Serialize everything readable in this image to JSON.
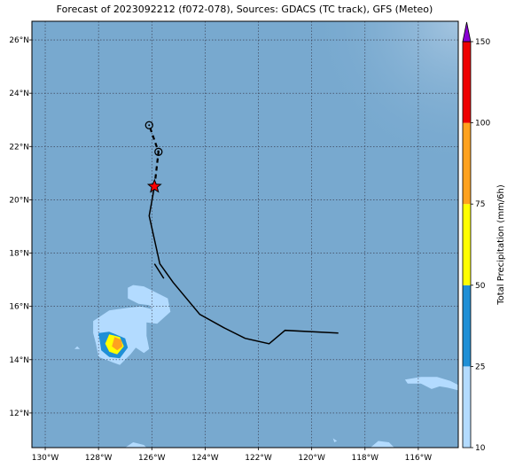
{
  "title": "Forecast of 2023092212 (f072-078), Sources: GDACS (TC track), GFS (Meteo)",
  "map": {
    "lon_range": [
      -130.5,
      -114.5
    ],
    "lat_range": [
      10.7,
      26.7
    ],
    "lon_ticks": [
      {
        "value": -130,
        "label": "130°W"
      },
      {
        "value": -128,
        "label": "128°W"
      },
      {
        "value": -126,
        "label": "126°W"
      },
      {
        "value": -124,
        "label": "124°W"
      },
      {
        "value": -122,
        "label": "122°W"
      },
      {
        "value": -120,
        "label": "120°W"
      },
      {
        "value": -118,
        "label": "118°W"
      },
      {
        "value": -116,
        "label": "116°W"
      }
    ],
    "lat_ticks": [
      {
        "value": 12,
        "label": "12°N"
      },
      {
        "value": 14,
        "label": "14°N"
      },
      {
        "value": 16,
        "label": "16°N"
      },
      {
        "value": 18,
        "label": "18°N"
      },
      {
        "value": 20,
        "label": "20°N"
      },
      {
        "value": 22,
        "label": "22°N"
      },
      {
        "value": 24,
        "label": "24°N"
      },
      {
        "value": 26,
        "label": "26°N"
      }
    ],
    "grid": true,
    "ocean_color": "#78a9cf"
  },
  "track": {
    "observed": [
      [
        -119.0,
        15.0
      ],
      [
        -121.0,
        15.1
      ],
      [
        -121.6,
        14.6
      ],
      [
        -122.5,
        14.8
      ],
      [
        -123.3,
        15.2
      ],
      [
        -124.2,
        15.7
      ],
      [
        -125.2,
        16.9
      ],
      [
        -125.7,
        17.6
      ],
      [
        -125.9,
        18.5
      ],
      [
        -126.1,
        19.4
      ],
      [
        -125.9,
        20.5
      ]
    ],
    "loop": [
      [
        -125.9,
        17.6
      ],
      [
        -125.55,
        17.05
      ]
    ],
    "forecast": [
      [
        -125.9,
        20.5
      ],
      [
        -125.75,
        21.8
      ],
      [
        -126.1,
        22.8
      ]
    ],
    "forecast_points": [
      [
        -125.75,
        21.8
      ],
      [
        -126.1,
        22.8
      ]
    ],
    "current_position": [
      -125.9,
      20.5
    ],
    "current_color": "#ff0000",
    "line_color": "#000000"
  },
  "precipitation": {
    "regions": [
      {
        "level": 10,
        "color": "#b3dbff",
        "points": [
          [
            -126.7,
            16.8
          ],
          [
            -126.3,
            16.75
          ],
          [
            -126.0,
            16.6
          ],
          [
            -125.8,
            16.5
          ],
          [
            -125.4,
            16.3
          ],
          [
            -125.3,
            15.8
          ],
          [
            -125.8,
            15.35
          ],
          [
            -126.2,
            15.4
          ],
          [
            -126.2,
            14.9
          ],
          [
            -126.1,
            14.4
          ],
          [
            -126.3,
            14.25
          ],
          [
            -126.6,
            14.45
          ],
          [
            -126.8,
            14.2
          ],
          [
            -127.2,
            13.8
          ],
          [
            -127.6,
            13.95
          ],
          [
            -128.0,
            14.1
          ],
          [
            -128.1,
            14.6
          ],
          [
            -128.2,
            15.0
          ],
          [
            -128.2,
            15.45
          ],
          [
            -127.6,
            15.85
          ],
          [
            -126.9,
            15.95
          ],
          [
            -126.4,
            16.0
          ],
          [
            -126.0,
            15.9
          ],
          [
            -126.1,
            16.05
          ],
          [
            -126.5,
            16.1
          ],
          [
            -126.9,
            16.3
          ],
          [
            -126.9,
            16.7
          ]
        ]
      },
      {
        "level": 25,
        "color": "#1f8fd6",
        "points": [
          [
            -128.0,
            15.0
          ],
          [
            -127.6,
            15.05
          ],
          [
            -127.0,
            14.8
          ],
          [
            -126.9,
            14.45
          ],
          [
            -127.2,
            14.05
          ],
          [
            -127.6,
            14.1
          ],
          [
            -127.9,
            14.35
          ]
        ]
      },
      {
        "level": 50,
        "color": "#ffff00",
        "points": [
          [
            -127.6,
            14.95
          ],
          [
            -127.2,
            14.85
          ],
          [
            -127.05,
            14.5
          ],
          [
            -127.3,
            14.2
          ],
          [
            -127.6,
            14.3
          ],
          [
            -127.75,
            14.6
          ]
        ]
      },
      {
        "level": 75,
        "color": "#ffa21f",
        "points": [
          [
            -127.4,
            14.85
          ],
          [
            -127.15,
            14.75
          ],
          [
            -127.1,
            14.5
          ],
          [
            -127.3,
            14.35
          ],
          [
            -127.5,
            14.5
          ]
        ]
      },
      {
        "level": 10,
        "color": "#b3dbff",
        "points": [
          [
            -115.5,
            12.9
          ],
          [
            -115.2,
            13.0
          ],
          [
            -114.9,
            12.95
          ],
          [
            -114.5,
            12.85
          ],
          [
            -114.5,
            13.05
          ],
          [
            -114.8,
            13.2
          ],
          [
            -115.3,
            13.35
          ],
          [
            -115.9,
            13.35
          ],
          [
            -116.5,
            13.25
          ],
          [
            -116.4,
            13.1
          ],
          [
            -115.9,
            13.1
          ]
        ]
      },
      {
        "level": 10,
        "color": "#b3dbff",
        "points": [
          [
            -128.8,
            14.5
          ],
          [
            -128.7,
            14.4
          ],
          [
            -128.9,
            14.4
          ]
        ]
      },
      {
        "level": 10,
        "color": "#b3dbff",
        "points": [
          [
            -119.2,
            11.05
          ],
          [
            -119.05,
            10.95
          ],
          [
            -119.15,
            10.9
          ]
        ]
      },
      {
        "level": 10,
        "color": "#b3dbff",
        "points": [
          [
            -117.8,
            10.7
          ],
          [
            -117.5,
            10.95
          ],
          [
            -117.1,
            10.9
          ],
          [
            -116.9,
            10.7
          ]
        ]
      },
      {
        "level": 10,
        "color": "#b3dbff",
        "points": [
          [
            -127.0,
            10.7
          ],
          [
            -126.7,
            10.9
          ],
          [
            -126.3,
            10.8
          ],
          [
            -126.2,
            10.7
          ]
        ]
      }
    ]
  },
  "colorbar": {
    "label": "Total Precipitation (mm/6h)",
    "bounds": [
      10,
      25,
      50,
      75,
      100,
      150
    ],
    "tick_labels": [
      "10",
      "25",
      "50",
      "75",
      "100",
      "150"
    ],
    "colors": [
      "#b3dbff",
      "#1f8fd6",
      "#ffff00",
      "#ffa21f",
      "#ee0000"
    ],
    "extend_color": "#8a00d4"
  }
}
